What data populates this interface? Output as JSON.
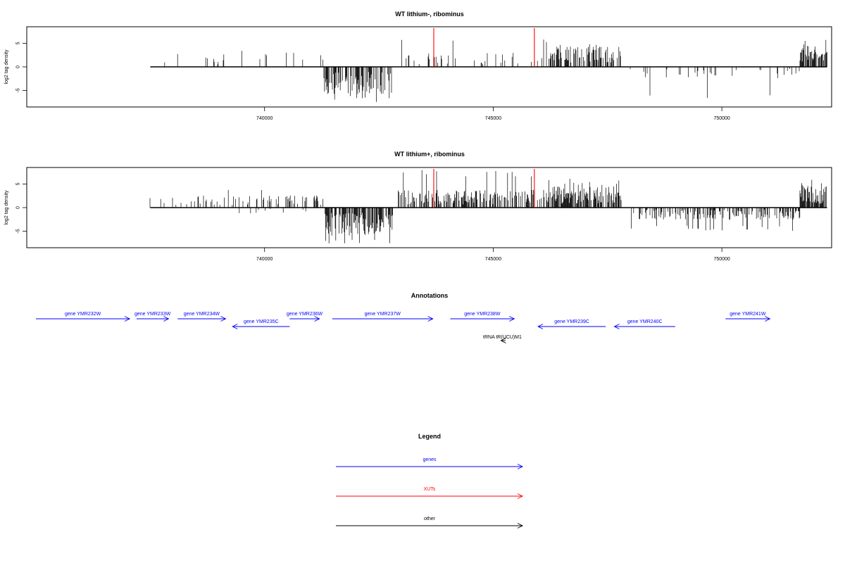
{
  "chart_data": [
    {
      "type": "bar",
      "title": "WT lithium-, ribominus",
      "ylabel": "log2 tag density",
      "xlabel": "",
      "xlim": [
        734800,
        752400
      ],
      "ylim": [
        -8.5,
        8.5
      ],
      "yticks": [
        -5,
        0,
        5
      ],
      "xticks": [
        740000,
        745000,
        750000
      ],
      "track_range": [
        737500,
        752300
      ],
      "segments": [
        {
          "start": 737500,
          "end": 741300,
          "sign": 1,
          "density": 0.05,
          "avg": 2.0,
          "max": 3.6
        },
        {
          "start": 741300,
          "end": 742800,
          "sign": -1,
          "density": 0.5,
          "avg": 4.3,
          "max": 7.6
        },
        {
          "start": 742900,
          "end": 746200,
          "sign": 1,
          "density": 0.12,
          "avg": 2.2,
          "max": 6.0
        },
        {
          "start": 746200,
          "end": 747800,
          "sign": 1,
          "density": 0.55,
          "avg": 3.2,
          "max": 5.3
        },
        {
          "start": 748000,
          "end": 751700,
          "sign": -1,
          "density": 0.12,
          "avg": 1.8,
          "max": 6.8
        },
        {
          "start": 751700,
          "end": 752300,
          "sign": 1,
          "density": 0.85,
          "avg": 3.3,
          "max": 6.3
        }
      ],
      "markers": [
        {
          "x": 743700,
          "y": 8.2
        },
        {
          "x": 745900,
          "y": 8.2
        }
      ]
    },
    {
      "type": "bar",
      "title": "WT lithium+, ribominus",
      "ylabel": "log2 tag density",
      "xlabel": "",
      "xlim": [
        734800,
        752400
      ],
      "ylim": [
        -8.5,
        8.5
      ],
      "yticks": [
        -5,
        0,
        5
      ],
      "xticks": [
        740000,
        745000,
        750000
      ],
      "track_range": [
        737500,
        752300
      ],
      "segments": [
        {
          "start": 737500,
          "end": 741300,
          "sign": 1,
          "density": 0.25,
          "avg": 1.9,
          "max": 4.3
        },
        {
          "start": 738700,
          "end": 741000,
          "sign": -1,
          "density": 0.05,
          "avg": 0.9,
          "max": 1.6
        },
        {
          "start": 741300,
          "end": 742800,
          "sign": -1,
          "density": 0.7,
          "avg": 4.4,
          "max": 7.8
        },
        {
          "start": 742900,
          "end": 746200,
          "sign": 1,
          "density": 0.5,
          "avg": 2.8,
          "max": 8.0
        },
        {
          "start": 746200,
          "end": 747800,
          "sign": 1,
          "density": 0.75,
          "avg": 3.4,
          "max": 6.3
        },
        {
          "start": 748000,
          "end": 751700,
          "sign": -1,
          "density": 0.4,
          "avg": 1.9,
          "max": 5.0
        },
        {
          "start": 751700,
          "end": 752300,
          "sign": 1,
          "density": 0.9,
          "avg": 3.4,
          "max": 6.0
        }
      ],
      "markers": [
        {
          "x": 743700,
          "y": 8.2
        },
        {
          "x": 745900,
          "y": 8.2
        }
      ]
    }
  ],
  "annotations": {
    "title": "Annotations",
    "xlim": [
      734800,
      752400
    ],
    "genes": [
      {
        "label": "gene YMR232W",
        "start": 735000,
        "end": 737050,
        "strand": "+",
        "row": 0,
        "color": "#0000ff"
      },
      {
        "label": "gene YMR233W",
        "start": 737200,
        "end": 737900,
        "strand": "+",
        "row": 0,
        "color": "#0000ff"
      },
      {
        "label": "gene YMR234W",
        "start": 738100,
        "end": 739150,
        "strand": "+",
        "row": 0,
        "color": "#0000ff"
      },
      {
        "label": "gene YMR235C",
        "start": 739300,
        "end": 740550,
        "strand": "-",
        "row": 1,
        "color": "#0000ff"
      },
      {
        "label": "gene YMR236W",
        "start": 740550,
        "end": 741200,
        "strand": "+",
        "row": 0,
        "color": "#0000ff"
      },
      {
        "label": "gene YMR237W",
        "start": 741480,
        "end": 743680,
        "strand": "+",
        "row": 0,
        "color": "#0000ff"
      },
      {
        "label": "gene YMR238W",
        "start": 744060,
        "end": 745460,
        "strand": "+",
        "row": 0,
        "color": "#0000ff"
      },
      {
        "label": "gene YMR239C",
        "start": 745980,
        "end": 747460,
        "strand": "-",
        "row": 1,
        "color": "#0000ff"
      },
      {
        "label": "gene YMR240C",
        "start": 747650,
        "end": 748980,
        "strand": "-",
        "row": 1,
        "color": "#0000ff"
      },
      {
        "label": "gene YMR241W",
        "start": 750080,
        "end": 751050,
        "strand": "+",
        "row": 0,
        "color": "#0000ff"
      },
      {
        "label": "tRNA tR(UCU)M1",
        "start": 745170,
        "end": 745270,
        "strand": "-",
        "row": 2,
        "color": "#000000"
      }
    ]
  },
  "legend": {
    "title": "Legend",
    "items": [
      {
        "label": "genes",
        "color": "#0000ff"
      },
      {
        "label": "XUTs",
        "color": "#ff0000"
      },
      {
        "label": "other",
        "color": "#000000"
      }
    ]
  }
}
